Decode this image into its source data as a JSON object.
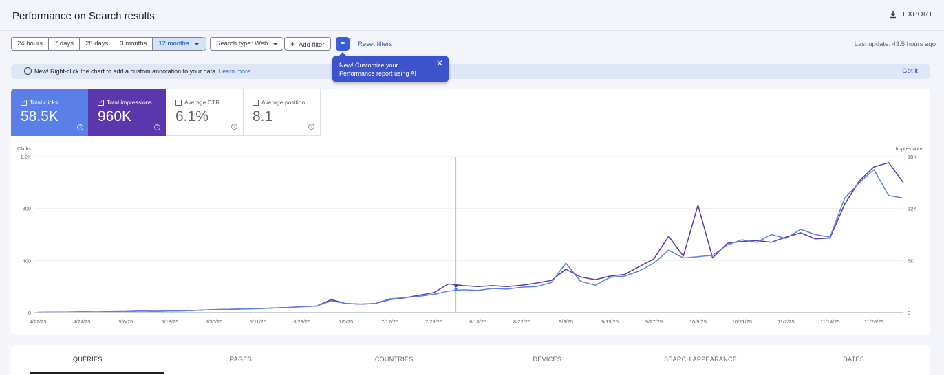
{
  "header": {
    "title": "Performance on Search results",
    "export_label": "EXPORT"
  },
  "toolbar": {
    "ranges": [
      "24 hours",
      "7 days",
      "28 days",
      "3 months",
      "12 months"
    ],
    "selected_range": "12 months",
    "search_type": "Search type: Web",
    "add_filter": "Add filter",
    "reset_filters": "Reset filters",
    "last_update": "Last update: 43.5 hours ago"
  },
  "banner": {
    "text": "New! Right-click the chart to add a custom annotation to your data.",
    "learn_more": "Learn more",
    "got_it": "Got it"
  },
  "tooltip": {
    "text": "New! Customize your Performance report using AI"
  },
  "metrics": [
    {
      "label": "Total clicks",
      "value": "58.5K",
      "checked": true
    },
    {
      "label": "Total impressions",
      "value": "960K",
      "checked": true
    },
    {
      "label": "Average CTR",
      "value": "6.1%",
      "checked": false
    },
    {
      "label": "Average position",
      "value": "8.1",
      "checked": false
    }
  ],
  "colors": {
    "clicks": "#5b7fe8",
    "impressions": "#5b37ad"
  },
  "chart_data": {
    "type": "line",
    "left_axis_label": "Clicks",
    "right_axis_label": "Impressions",
    "left_ticks": [
      "0",
      "400",
      "800",
      "1.2K"
    ],
    "right_ticks": [
      "0",
      "6K",
      "12K",
      "18K"
    ],
    "ylim_left": [
      0,
      1200
    ],
    "ylim_right": [
      0,
      18000
    ],
    "x_tick_labels": [
      "4/12/25",
      "4/24/25",
      "5/6/25",
      "5/18/25",
      "5/30/25",
      "6/11/25",
      "6/23/25",
      "7/5/25",
      "7/17/25",
      "7/29/25",
      "8/10/25",
      "8/22/25",
      "9/3/25",
      "9/15/25",
      "9/27/25",
      "10/9/25",
      "10/21/25",
      "11/2/25",
      "11/14/25",
      "11/26/25"
    ],
    "x_days_from_start_step": 4,
    "hover_day": 114,
    "series": [
      {
        "name": "Clicks",
        "axis": "left",
        "values": [
          2,
          3,
          4,
          6,
          5,
          7,
          8,
          12,
          10,
          12,
          14,
          18,
          22,
          25,
          28,
          30,
          35,
          38,
          45,
          50,
          90,
          70,
          65,
          70,
          105,
          115,
          125,
          140,
          165,
          175,
          170,
          185,
          180,
          195,
          200,
          230,
          380,
          240,
          210,
          270,
          280,
          320,
          380,
          480,
          420,
          430,
          440,
          520,
          560,
          540,
          600,
          570,
          640,
          600,
          580,
          880,
          1000,
          1100,
          900,
          880
        ]
      },
      {
        "name": "Impressions",
        "axis": "right",
        "values": [
          30,
          45,
          60,
          90,
          75,
          105,
          120,
          180,
          150,
          180,
          210,
          270,
          330,
          375,
          420,
          450,
          525,
          570,
          675,
          750,
          1500,
          1050,
          975,
          1050,
          1500,
          1700,
          2000,
          2300,
          3300,
          3100,
          3000,
          3100,
          3000,
          3150,
          3400,
          3700,
          5000,
          4100,
          3800,
          4200,
          4400,
          5300,
          6200,
          8800,
          6500,
          12400,
          6300,
          8000,
          8200,
          8300,
          8100,
          8700,
          9200,
          8500,
          8600,
          12500,
          15200,
          16800,
          17300,
          15000
        ]
      }
    ]
  },
  "tabs": [
    "QUERIES",
    "PAGES",
    "COUNTRIES",
    "DEVICES",
    "SEARCH APPEARANCE",
    "DATES"
  ]
}
